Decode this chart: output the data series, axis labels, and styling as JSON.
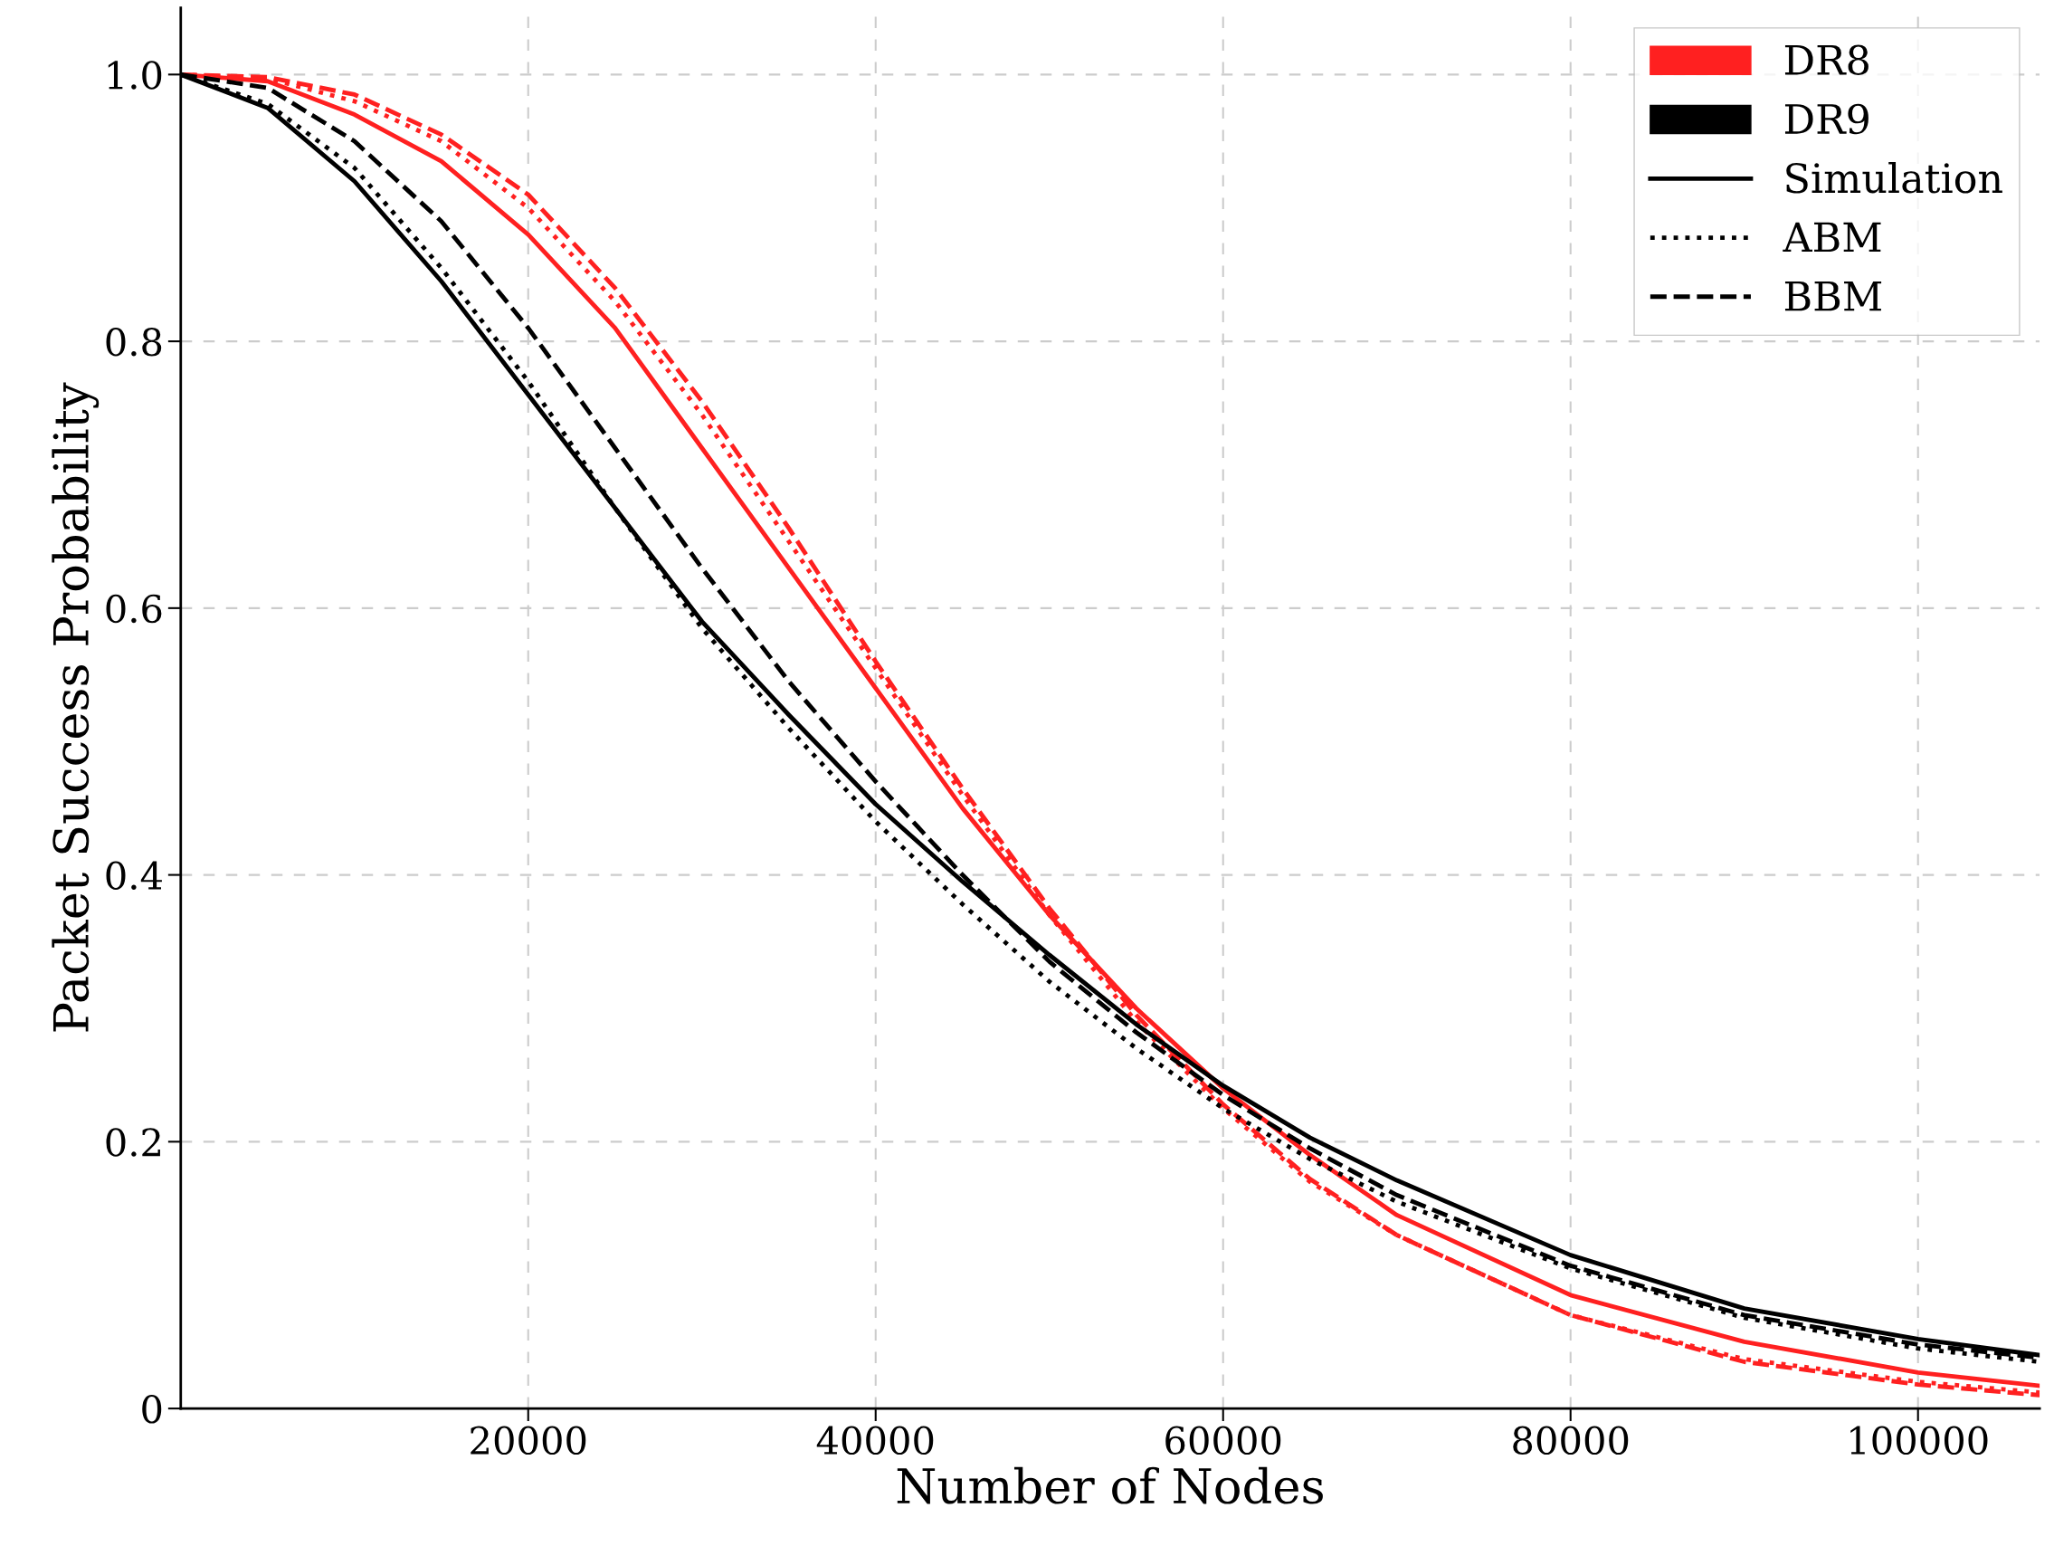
{
  "chart_data": {
    "type": "line",
    "xlabel": "Number of Nodes",
    "ylabel": "Packet Success Probability",
    "x": [
      0,
      5000,
      10000,
      15000,
      20000,
      25000,
      30000,
      35000,
      40000,
      45000,
      50000,
      55000,
      60000,
      65000,
      70000,
      80000,
      90000,
      100000,
      107000
    ],
    "series": [
      {
        "name": "DR8",
        "color": "#ff2020",
        "line_style": "solid",
        "values": [
          1.0,
          0.995,
          0.97,
          0.935,
          0.88,
          0.81,
          0.72,
          0.63,
          0.54,
          0.45,
          0.37,
          0.3,
          0.24,
          0.19,
          0.145,
          0.085,
          0.05,
          0.027,
          0.017
        ]
      },
      {
        "color": "#ff2020",
        "line_style": "dotted",
        "values": [
          1.0,
          0.997,
          0.98,
          0.95,
          0.9,
          0.83,
          0.745,
          0.65,
          0.555,
          0.46,
          0.37,
          0.29,
          0.225,
          0.17,
          0.13,
          0.07,
          0.037,
          0.02,
          0.012
        ]
      },
      {
        "color": "#ff2020",
        "line_style": "dashed",
        "values": [
          1.0,
          0.998,
          0.985,
          0.955,
          0.91,
          0.84,
          0.755,
          0.66,
          0.56,
          0.465,
          0.375,
          0.295,
          0.228,
          0.172,
          0.13,
          0.07,
          0.035,
          0.018,
          0.01
        ]
      },
      {
        "name": "DR9",
        "color": "#000000",
        "line_style": "solid",
        "values": [
          1.0,
          0.975,
          0.92,
          0.845,
          0.76,
          0.675,
          0.59,
          0.52,
          0.453,
          0.395,
          0.34,
          0.288,
          0.242,
          0.203,
          0.171,
          0.115,
          0.075,
          0.052,
          0.04
        ]
      },
      {
        "color": "#000000",
        "line_style": "dotted",
        "values": [
          1.0,
          0.978,
          0.93,
          0.855,
          0.77,
          0.675,
          0.585,
          0.51,
          0.44,
          0.378,
          0.32,
          0.27,
          0.225,
          0.187,
          0.155,
          0.105,
          0.068,
          0.045,
          0.035
        ]
      },
      {
        "color": "#000000",
        "line_style": "dashed",
        "values": [
          1.0,
          0.99,
          0.95,
          0.89,
          0.81,
          0.72,
          0.63,
          0.545,
          0.47,
          0.4,
          0.335,
          0.282,
          0.235,
          0.195,
          0.16,
          0.107,
          0.07,
          0.048,
          0.038
        ]
      }
    ],
    "annotations": [
      "Simulation",
      "ABM",
      "BBM"
    ],
    "xlim": [
      0,
      107000
    ],
    "ylim": [
      0,
      1.05
    ],
    "xticks": [
      20000,
      40000,
      60000,
      80000,
      100000
    ],
    "yticks": [
      0,
      {
        "value": 0.2,
        "label": "0.2"
      },
      {
        "value": 0.4,
        "label": "0.4"
      },
      {
        "value": 0.6,
        "label": "0.6"
      },
      {
        "value": 0.8,
        "label": "0.8"
      },
      {
        "value": 1.0,
        "label": "1.0"
      }
    ],
    "grid": true,
    "legend": "top right"
  }
}
